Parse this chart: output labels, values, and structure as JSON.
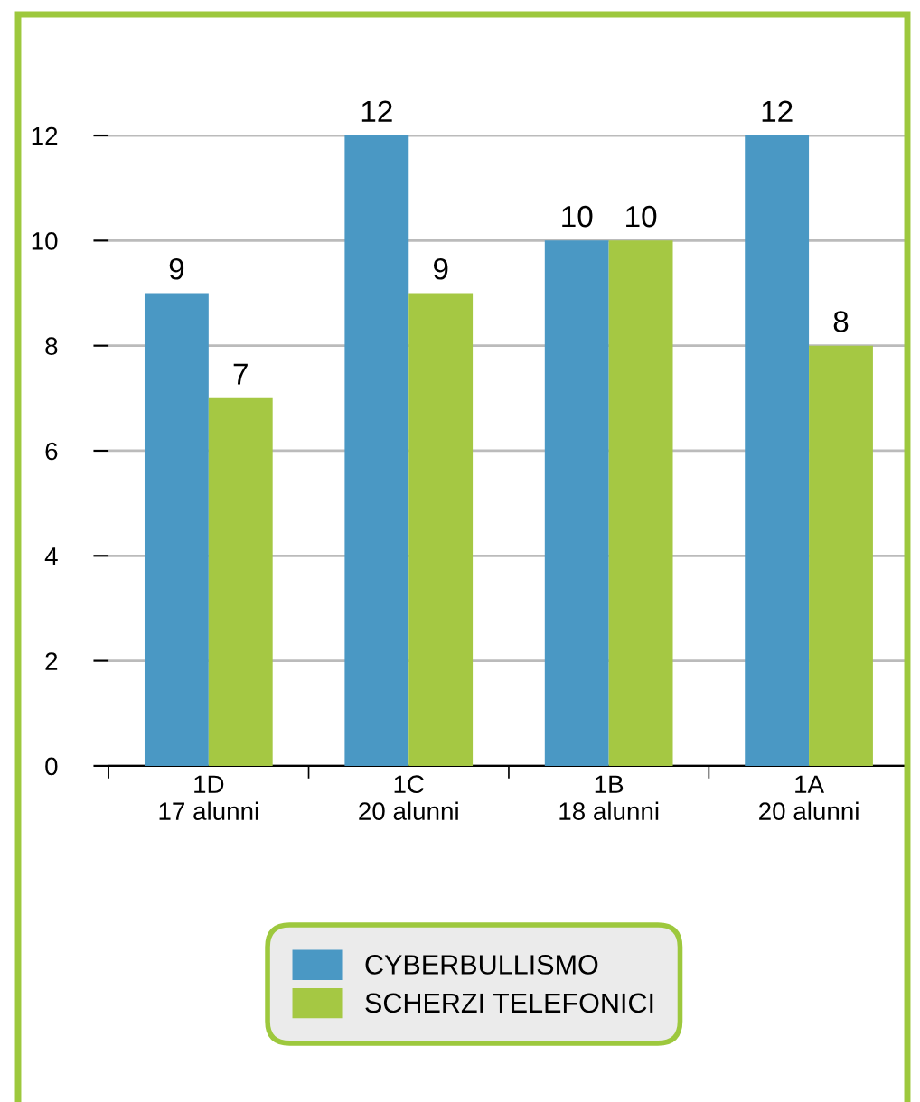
{
  "chart_data": {
    "type": "bar",
    "categories": [
      "1D\n17 alunni",
      "1C\n20 alunni",
      "1B\n18 alunni",
      "1A\n20 alunni"
    ],
    "series": [
      {
        "name": "CYBERBULLISMO",
        "color": "#4a98c4",
        "values": [
          9,
          12,
          10,
          12
        ]
      },
      {
        "name": "SCHERZI TELEFONICI",
        "color": "#a5c843",
        "values": [
          7,
          9,
          10,
          8
        ]
      }
    ],
    "ylim": [
      0,
      12
    ],
    "yticks": [
      0,
      2,
      4,
      6,
      8,
      10,
      12
    ],
    "grid": "y",
    "legend": "bottom",
    "data_labels": true
  }
}
